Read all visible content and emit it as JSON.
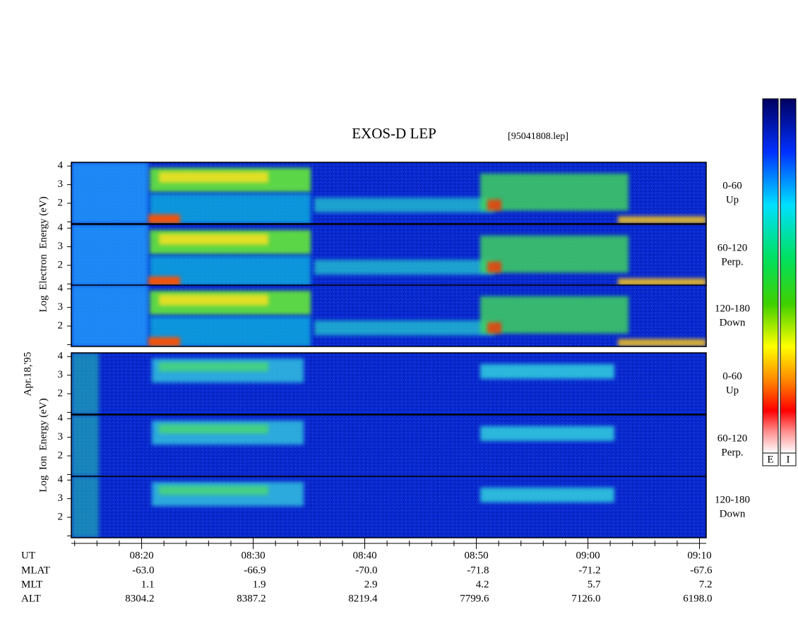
{
  "chart_data": {
    "type": "spectrogram",
    "title": "EXOS-D LEP",
    "file": "[95041808.lep]",
    "date_label": "Apr.18,'95",
    "xlim": [
      493.7,
      550.6
    ],
    "xticks": [
      {
        "value": 500,
        "label": "08:20"
      },
      {
        "value": 510,
        "label": "08:30"
      },
      {
        "value": 520,
        "label": "08:40"
      },
      {
        "value": 530,
        "label": "08:50"
      },
      {
        "value": 540,
        "label": "09:00"
      },
      {
        "value": 550,
        "label": "09:10"
      }
    ],
    "minor_xticks": [
      494,
      496,
      498,
      502,
      504,
      506,
      508,
      512,
      514,
      516,
      518,
      522,
      524,
      526,
      528,
      532,
      534,
      536,
      538,
      542,
      544,
      546,
      548
    ],
    "ylim": [
      0.9,
      4.2
    ],
    "yticks": [
      2,
      3,
      4
    ],
    "groups": [
      {
        "name": "electron",
        "ylabel": "Log  Electron  Energy (eV)",
        "panels": [
          {
            "pitch": "0-60",
            "dir": "Up"
          },
          {
            "pitch": "60-120",
            "dir": "Perp."
          },
          {
            "pitch": "120-180",
            "dir": "Down"
          }
        ]
      },
      {
        "name": "ion",
        "ylabel": "Log  Ion  Energy (eV)",
        "panels": [
          {
            "pitch": "0-60",
            "dir": "Up"
          },
          {
            "pitch": "60-120",
            "dir": "Perp."
          },
          {
            "pitch": "120-180",
            "dir": "Down"
          }
        ]
      }
    ],
    "colorbars": [
      "E",
      "I"
    ],
    "orbit_label_ut": "UT",
    "orbit": [
      {
        "label": "MLAT",
        "values": [
          "-63.0",
          "-66.9",
          "-70.0",
          "-71.8",
          "-71.2",
          "-67.6"
        ]
      },
      {
        "label": "MLT",
        "values": [
          "1.1",
          "1.9",
          "2.9",
          "4.2",
          "5.7",
          "7.2"
        ]
      },
      {
        "label": "ALT",
        "values": [
          "8304.2",
          "8387.2",
          "8219.4",
          "7799.6",
          "7126.0",
          "6198.0"
        ]
      }
    ]
  }
}
